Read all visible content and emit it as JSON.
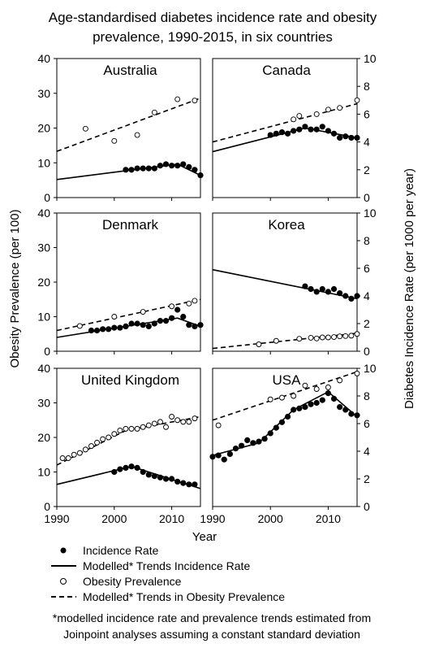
{
  "title_line1": "Age-standardised diabetes incidence rate and obesity",
  "title_line2": "prevalence, 1990-2015, in six countries",
  "y_left_label": "Obesity Prevalence (per 100)",
  "y_right_label": "Diabetes Incidence Rate (per 1000 per year)",
  "x_label": "Year",
  "legend": {
    "incidence": "Incidence Rate",
    "model_incidence": "Modelled* Trends Incidence Rate",
    "obesity": "Obesity Prevalence",
    "model_obesity": "Modelled* Trends in Obesity Prevalence"
  },
  "footnote_line1": "*modelled incidence rate and prevalence trends estimated from",
  "footnote_line2": "Joinpoint analyses assuming a constant standard deviation",
  "chart_data": [
    {
      "type": "scatter",
      "title": "Australia",
      "xlim": [
        1990,
        2015
      ],
      "ylim_left": [
        0,
        40
      ],
      "yticks_left": [
        0,
        10,
        20,
        30,
        40
      ],
      "ylim_right": [
        0,
        10
      ],
      "yticks_right": [
        0,
        2,
        4,
        6,
        8,
        10
      ],
      "series": [
        {
          "name": "Incidence Rate",
          "x": [
            2002,
            2003,
            2004,
            2005,
            2006,
            2007,
            2008,
            2009,
            2010,
            2011,
            2012,
            2013,
            2014,
            2015
          ],
          "y": [
            2.0,
            2.0,
            2.1,
            2.1,
            2.1,
            2.1,
            2.3,
            2.4,
            2.3,
            2.3,
            2.4,
            2.2,
            2.0,
            1.6
          ]
        },
        {
          "name": "Modelled* Trends Incidence Rate",
          "x": [
            1990,
            2011,
            2015
          ],
          "y": [
            1.3,
            2.4,
            1.6
          ]
        },
        {
          "name": "Obesity Prevalence",
          "x": [
            1995,
            2000,
            2004,
            2007,
            2011,
            2014
          ],
          "y": [
            19.8,
            16.3,
            18.0,
            24.5,
            28.3,
            27.9
          ]
        },
        {
          "name": "Modelled* Trends in Obesity Prevalence",
          "x": [
            1990,
            2015
          ],
          "y": [
            13.3,
            28.6
          ]
        }
      ]
    },
    {
      "type": "scatter",
      "title": "Canada",
      "xlim": [
        1990,
        2015
      ],
      "ylim_left": [
        0,
        40
      ],
      "yticks_left": [
        0,
        10,
        20,
        30,
        40
      ],
      "ylim_right": [
        0,
        10
      ],
      "yticks_right": [
        0,
        2,
        4,
        6,
        8,
        10
      ],
      "series": [
        {
          "name": "Incidence Rate",
          "x": [
            2000,
            2001,
            2002,
            2003,
            2004,
            2005,
            2006,
            2007,
            2008,
            2009,
            2010,
            2011,
            2012,
            2013,
            2014,
            2015
          ],
          "y": [
            4.5,
            4.6,
            4.7,
            4.6,
            4.8,
            4.9,
            5.1,
            4.9,
            4.9,
            5.1,
            4.8,
            4.6,
            4.3,
            4.4,
            4.3,
            4.3
          ]
        },
        {
          "name": "Modelled* Trends Incidence Rate",
          "x": [
            1990,
            2006,
            2015
          ],
          "y": [
            3.3,
            5.0,
            4.3
          ]
        },
        {
          "name": "Obesity Prevalence",
          "x": [
            2004,
            2005,
            2008,
            2010,
            2012,
            2015
          ],
          "y": [
            22.5,
            23.5,
            24.0,
            25.3,
            25.8,
            28.0
          ]
        },
        {
          "name": "Modelled* Trends in Obesity Prevalence",
          "x": [
            1990,
            2015
          ],
          "y": [
            16.0,
            27.0
          ]
        }
      ]
    },
    {
      "type": "scatter",
      "title": "Denmark",
      "xlim": [
        1990,
        2015
      ],
      "ylim_left": [
        0,
        40
      ],
      "yticks_left": [
        0,
        10,
        20,
        30,
        40
      ],
      "ylim_right": [
        0,
        10
      ],
      "yticks_right": [
        0,
        2,
        4,
        6,
        8,
        10
      ],
      "series": [
        {
          "name": "Incidence Rate",
          "x": [
            1996,
            1997,
            1998,
            1999,
            2000,
            2001,
            2002,
            2003,
            2004,
            2005,
            2006,
            2007,
            2008,
            2009,
            2010,
            2011,
            2012,
            2013,
            2014,
            2015
          ],
          "y": [
            1.5,
            1.5,
            1.6,
            1.6,
            1.7,
            1.7,
            1.8,
            2.0,
            2.0,
            1.9,
            1.8,
            2.0,
            2.2,
            2.2,
            2.4,
            3.0,
            2.5,
            1.9,
            1.8,
            1.9
          ]
        },
        {
          "name": "Modelled* Trends Incidence Rate",
          "x": [
            1990,
            2011,
            2015
          ],
          "y": [
            1.0,
            2.4,
            1.8
          ]
        },
        {
          "name": "Obesity Prevalence",
          "x": [
            1994,
            2000,
            2005,
            2010,
            2013,
            2014
          ],
          "y": [
            7.3,
            10.0,
            11.4,
            13.0,
            13.8,
            14.6
          ]
        },
        {
          "name": "Modelled* Trends in Obesity Prevalence",
          "x": [
            1990,
            2015
          ],
          "y": [
            6.0,
            15.0
          ]
        }
      ]
    },
    {
      "type": "scatter",
      "title": "Korea",
      "xlim": [
        1990,
        2015
      ],
      "ylim_left": [
        0,
        40
      ],
      "yticks_left": [
        0,
        10,
        20,
        30,
        40
      ],
      "ylim_right": [
        0,
        10
      ],
      "yticks_right": [
        0,
        2,
        4,
        6,
        8,
        10
      ],
      "series": [
        {
          "name": "Incidence Rate",
          "x": [
            2006,
            2007,
            2008,
            2009,
            2010,
            2011,
            2012,
            2013,
            2014,
            2015
          ],
          "y": [
            4.7,
            4.5,
            4.3,
            4.5,
            4.3,
            4.5,
            4.2,
            4.0,
            3.8,
            4.0
          ]
        },
        {
          "name": "Modelled* Trends Incidence Rate",
          "x": [
            1990,
            2015
          ],
          "y": [
            5.9,
            3.8
          ]
        },
        {
          "name": "Obesity Prevalence",
          "x": [
            1998,
            2001,
            2005,
            2007,
            2008,
            2009,
            2010,
            2011,
            2012,
            2013,
            2014,
            2015
          ],
          "y": [
            2.0,
            3.0,
            3.6,
            3.9,
            3.7,
            4.0,
            4.0,
            4.1,
            4.3,
            4.4,
            4.5,
            5.0
          ]
        },
        {
          "name": "Modelled* Trends in Obesity Prevalence",
          "x": [
            1990,
            2015
          ],
          "y": [
            0.8,
            5.2
          ]
        }
      ]
    },
    {
      "type": "scatter",
      "title": "United Kingdom",
      "xlim": [
        1990,
        2015
      ],
      "ylim_left": [
        0,
        40
      ],
      "yticks_left": [
        0,
        10,
        20,
        30,
        40
      ],
      "ylim_right": [
        0,
        10
      ],
      "yticks_right": [
        0,
        2,
        4,
        6,
        8,
        10
      ],
      "series": [
        {
          "name": "Incidence Rate",
          "x": [
            2000,
            2001,
            2002,
            2003,
            2004,
            2005,
            2006,
            2007,
            2008,
            2009,
            2010,
            2011,
            2012,
            2013,
            2014
          ],
          "y": [
            2.5,
            2.7,
            2.8,
            2.9,
            2.8,
            2.5,
            2.3,
            2.2,
            2.1,
            2.0,
            2.0,
            1.8,
            1.7,
            1.6,
            1.6
          ]
        },
        {
          "name": "Modelled* Trends Incidence Rate",
          "x": [
            1990,
            2003,
            2015
          ],
          "y": [
            1.6,
            2.9,
            1.3
          ]
        },
        {
          "name": "Obesity Prevalence",
          "x": [
            1991,
            1992,
            1993,
            1994,
            1995,
            1996,
            1997,
            1998,
            1999,
            2000,
            2001,
            2002,
            2003,
            2004,
            2005,
            2006,
            2007,
            2008,
            2009,
            2010,
            2011,
            2012,
            2013,
            2014
          ],
          "y": [
            14.0,
            14.0,
            15.0,
            15.5,
            16.5,
            17.5,
            18.5,
            19.5,
            20.0,
            21.0,
            22.0,
            22.5,
            22.5,
            22.5,
            23.0,
            23.5,
            24.0,
            24.5,
            23.0,
            26.0,
            25.0,
            24.5,
            24.5,
            25.5
          ]
        },
        {
          "name": "Modelled* Trends in Obesity Prevalence",
          "x": [
            1990,
            2002,
            2015
          ],
          "y": [
            12.0,
            22.0,
            26.0
          ]
        }
      ]
    },
    {
      "type": "scatter",
      "title": "USA",
      "xlim": [
        1990,
        2015
      ],
      "ylim_left": [
        0,
        40
      ],
      "yticks_left": [
        0,
        10,
        20,
        30,
        40
      ],
      "ylim_right": [
        0,
        10
      ],
      "yticks_right": [
        0,
        2,
        4,
        6,
        8,
        10
      ],
      "series": [
        {
          "name": "Incidence Rate",
          "x": [
            1990,
            1991,
            1992,
            1993,
            1994,
            1995,
            1996,
            1997,
            1998,
            1999,
            2000,
            2001,
            2002,
            2003,
            2004,
            2005,
            2006,
            2007,
            2008,
            2009,
            2010,
            2011,
            2012,
            2013,
            2014,
            2015
          ],
          "y": [
            3.6,
            3.7,
            3.4,
            3.8,
            4.2,
            4.4,
            4.8,
            4.6,
            4.7,
            4.9,
            5.3,
            5.7,
            6.1,
            6.5,
            7.0,
            7.1,
            7.2,
            7.4,
            7.5,
            7.7,
            8.2,
            7.8,
            7.2,
            7.0,
            6.7,
            6.6
          ]
        },
        {
          "name": "Modelled* Trends Incidence Rate",
          "x": [
            1990,
            1998,
            2004,
            2010,
            2015
          ],
          "y": [
            3.7,
            4.6,
            7.0,
            8.3,
            6.5
          ]
        },
        {
          "name": "Obesity Prevalence",
          "x": [
            1991,
            2000,
            2002,
            2004,
            2006,
            2008,
            2010,
            2012,
            2015
          ],
          "y": [
            23.5,
            31.0,
            31.5,
            32.0,
            35.0,
            34.0,
            34.5,
            36.5,
            38.5
          ]
        },
        {
          "name": "Modelled* Trends in Obesity Prevalence",
          "x": [
            1990,
            2015
          ],
          "y": [
            25.0,
            39.0
          ]
        }
      ]
    }
  ],
  "x_ticks": [
    1990,
    2000,
    2010
  ]
}
